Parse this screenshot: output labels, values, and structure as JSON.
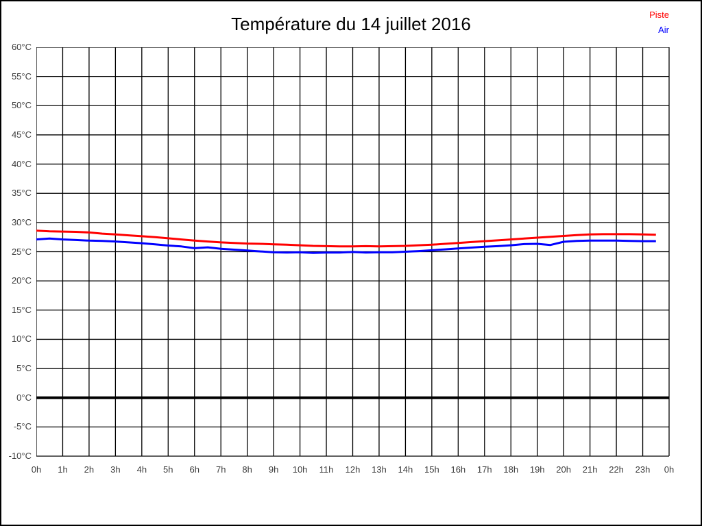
{
  "title": "Température du 14 juillet 2016",
  "legend": {
    "items": [
      {
        "label": "Piste",
        "color": "#ff0000"
      },
      {
        "label": "Air",
        "color": "#0000ff"
      }
    ]
  },
  "chart_data": {
    "type": "line",
    "title": "Température du 14 juillet 2016",
    "xlabel": "",
    "ylabel": "",
    "ylim": [
      -10,
      60
    ],
    "y_ticks": [
      60,
      55,
      50,
      45,
      40,
      35,
      30,
      25,
      20,
      15,
      10,
      5,
      0,
      -5,
      -10
    ],
    "y_tick_labels": [
      "60°C",
      "55°C",
      "50°C",
      "45°C",
      "40°C",
      "35°C",
      "30°C",
      "25°C",
      "20°C",
      "15°C",
      "10°C",
      "5°C",
      "0°C",
      "-5°C",
      "-10°C"
    ],
    "xlim": [
      0,
      24
    ],
    "x_ticks": [
      0,
      1,
      2,
      3,
      4,
      5,
      6,
      7,
      8,
      9,
      10,
      11,
      12,
      13,
      14,
      15,
      16,
      17,
      18,
      19,
      20,
      21,
      22,
      23,
      24
    ],
    "x_tick_labels": [
      "0h",
      "1h",
      "2h",
      "3h",
      "4h",
      "5h",
      "6h",
      "7h",
      "8h",
      "9h",
      "10h",
      "11h",
      "12h",
      "13h",
      "14h",
      "15h",
      "16h",
      "17h",
      "18h",
      "19h",
      "20h",
      "21h",
      "22h",
      "23h",
      "0h"
    ],
    "grid": true,
    "zero_line_bold": true,
    "legend_position": "top-right",
    "x": [
      0,
      0.5,
      1,
      1.5,
      2,
      2.5,
      3,
      3.5,
      4,
      4.5,
      5,
      5.5,
      6,
      6.5,
      7,
      7.5,
      8,
      8.5,
      9,
      9.5,
      10,
      10.5,
      11,
      11.5,
      12,
      12.5,
      13,
      13.5,
      14,
      14.5,
      15,
      15.5,
      16,
      16.5,
      17,
      17.5,
      18,
      18.5,
      19,
      19.5,
      20,
      20.5,
      21,
      21.5,
      22,
      22.5,
      23,
      23.5
    ],
    "series": [
      {
        "name": "Piste",
        "color": "#ff0000",
        "values": [
          28.6,
          28.5,
          28.45,
          28.4,
          28.3,
          28.1,
          27.95,
          27.8,
          27.65,
          27.5,
          27.3,
          27.1,
          26.9,
          26.75,
          26.6,
          26.5,
          26.4,
          26.35,
          26.25,
          26.2,
          26.1,
          26.0,
          25.95,
          25.9,
          25.9,
          25.95,
          25.9,
          25.95,
          26.0,
          26.1,
          26.2,
          26.35,
          26.5,
          26.65,
          26.8,
          26.95,
          27.1,
          27.25,
          27.4,
          27.55,
          27.7,
          27.85,
          27.95,
          28.0,
          28.0,
          28.0,
          27.95,
          27.9
        ]
      },
      {
        "name": "Air",
        "color": "#0000ff",
        "values": [
          27.1,
          27.25,
          27.1,
          27.0,
          26.9,
          26.85,
          26.75,
          26.6,
          26.45,
          26.25,
          26.05,
          25.9,
          25.6,
          25.75,
          25.5,
          25.35,
          25.2,
          25.05,
          24.9,
          24.85,
          24.9,
          24.8,
          24.85,
          24.85,
          24.95,
          24.85,
          24.9,
          24.9,
          25.0,
          25.1,
          25.25,
          25.4,
          25.55,
          25.7,
          25.85,
          25.95,
          26.1,
          26.3,
          26.35,
          26.15,
          26.7,
          26.85,
          26.9,
          26.9,
          26.9,
          26.85,
          26.8,
          26.8
        ]
      }
    ]
  }
}
